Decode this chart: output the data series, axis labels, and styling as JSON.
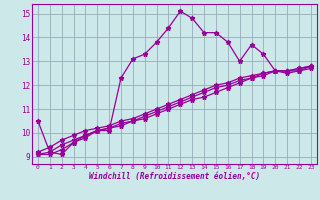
{
  "xlabel": "Windchill (Refroidissement éolien,°C)",
  "bg_color": "#cce8e8",
  "line_color": "#990099",
  "grid_color": "#99aabb",
  "x_values": [
    0,
    1,
    2,
    3,
    4,
    5,
    6,
    7,
    8,
    9,
    10,
    11,
    12,
    13,
    14,
    15,
    16,
    17,
    18,
    19,
    20,
    21,
    22,
    23
  ],
  "series1": [
    10.5,
    9.2,
    9.1,
    9.6,
    9.8,
    10.1,
    10.1,
    12.3,
    13.1,
    13.3,
    13.8,
    14.4,
    15.1,
    14.8,
    14.2,
    14.2,
    13.8,
    13.0,
    13.7,
    13.3,
    12.6,
    12.6,
    12.7,
    12.8
  ],
  "series2": [
    9.1,
    9.1,
    9.3,
    9.6,
    9.9,
    10.1,
    10.2,
    10.3,
    10.5,
    10.6,
    10.8,
    11.0,
    11.2,
    11.4,
    11.5,
    11.7,
    11.9,
    12.1,
    12.3,
    12.4,
    12.6,
    12.6,
    12.7,
    12.8
  ],
  "series3": [
    9.1,
    9.2,
    9.5,
    9.7,
    9.9,
    10.1,
    10.2,
    10.4,
    10.5,
    10.7,
    10.9,
    11.1,
    11.3,
    11.5,
    11.7,
    11.9,
    12.0,
    12.2,
    12.3,
    12.5,
    12.6,
    12.6,
    12.6,
    12.8
  ],
  "series4": [
    9.2,
    9.4,
    9.7,
    9.9,
    10.1,
    10.2,
    10.3,
    10.5,
    10.6,
    10.8,
    11.0,
    11.2,
    11.4,
    11.6,
    11.8,
    12.0,
    12.1,
    12.3,
    12.4,
    12.5,
    12.6,
    12.5,
    12.6,
    12.7
  ],
  "ylim": [
    8.7,
    15.4
  ],
  "yticks": [
    9,
    10,
    11,
    12,
    13,
    14,
    15
  ],
  "xlim": [
    -0.5,
    23.5
  ],
  "xticks": [
    0,
    1,
    2,
    3,
    4,
    5,
    6,
    7,
    8,
    9,
    10,
    11,
    12,
    13,
    14,
    15,
    16,
    17,
    18,
    19,
    20,
    21,
    22,
    23
  ]
}
